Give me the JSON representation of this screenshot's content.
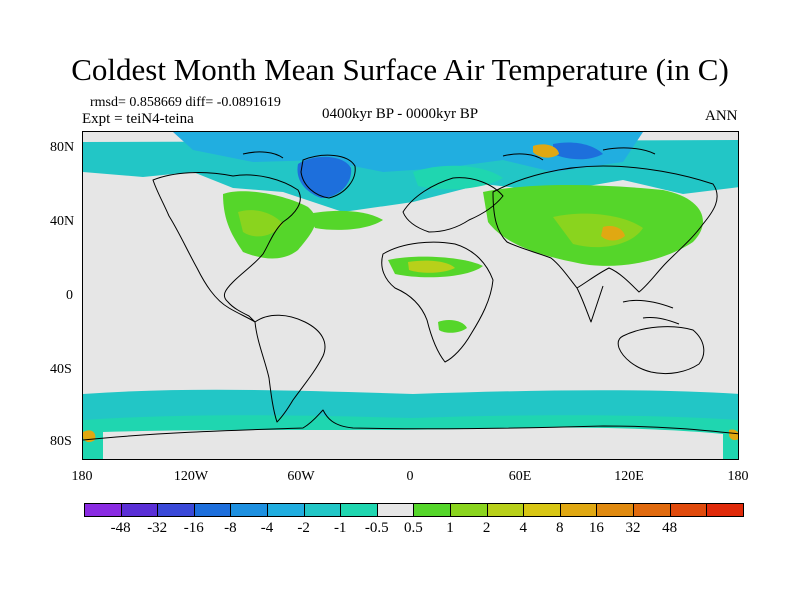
{
  "title": "Coldest Month Mean Surface Air Temperature (in C)",
  "stats_text": "rmsd= 0.858669 diff= -0.0891619",
  "experiment_text": "Expt = teiN4-teina",
  "period_text": "0400kyr BP - 0000kyr BP",
  "season_text": "ANN",
  "lat_labels": [
    "80N",
    "40N",
    "0",
    "40S",
    "80S"
  ],
  "lon_labels": [
    "180",
    "120W",
    "60W",
    "0",
    "60E",
    "120E",
    "180"
  ],
  "colorbar": {
    "colors": [
      "#8a2be2",
      "#5a2fd6",
      "#3a49d8",
      "#1d6fdc",
      "#1e90e0",
      "#21aee0",
      "#22c6c6",
      "#1fd6b0",
      "#e6e6e6",
      "#55d62a",
      "#8ad41e",
      "#b8d01a",
      "#d8c614",
      "#e0a812",
      "#e08a10",
      "#e06a0e",
      "#e04a0c",
      "#e02a0a"
    ],
    "labels": [
      "-48",
      "-32",
      "-16",
      "-8",
      "-4",
      "-2",
      "-1",
      "-0.5",
      "0.5",
      "1",
      "2",
      "4",
      "8",
      "16",
      "32",
      "48"
    ]
  },
  "map": {
    "background": "#e6e6e6",
    "anomaly_colors": {
      "light_cyan": "#22c6c6",
      "cyan": "#21aee0",
      "blue": "#1d6fdc",
      "mint": "#1fd6b0",
      "green": "#55d62a",
      "yellow_green": "#8ad41e",
      "olive": "#b8d01a",
      "orange": "#e0a812"
    }
  }
}
